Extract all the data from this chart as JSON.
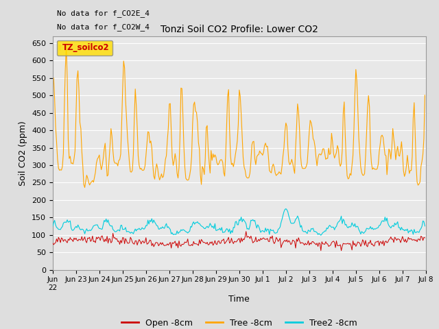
{
  "title": "Tonzi Soil CO2 Profile: Lower CO2",
  "xlabel": "Time",
  "ylabel": "Soil CO2 (ppm)",
  "ylim": [
    0,
    670
  ],
  "yticks": [
    0,
    50,
    100,
    150,
    200,
    250,
    300,
    350,
    400,
    450,
    500,
    550,
    600,
    650
  ],
  "note1": "No data for f_CO2E_4",
  "note2": "No data for f_CO2W_4",
  "legend_box_label": "TZ_soilco2",
  "legend_box_color": "#FFDD00",
  "legend_box_text_color": "#CC0000",
  "colors": {
    "open": "#CC0000",
    "tree": "#FFA500",
    "tree2": "#00CCDD"
  },
  "legend_labels": [
    "Open -8cm",
    "Tree -8cm",
    "Tree2 -8cm"
  ],
  "bg_color": "#E8E8E8",
  "plot_bg": "#E8E8E8",
  "grid_color": "#FFFFFF",
  "fig_bg": "#DEDEDE"
}
